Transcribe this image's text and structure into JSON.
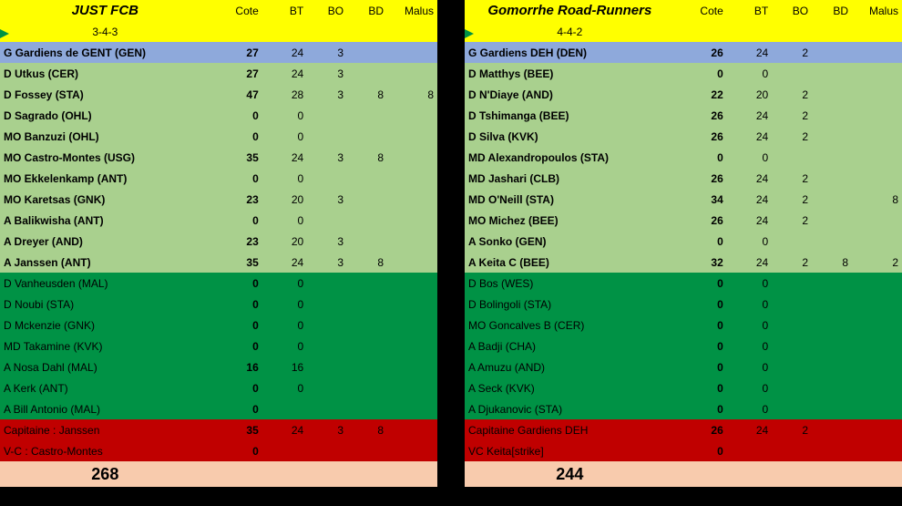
{
  "colors": {
    "header_bg": "#ffff00",
    "header_fg": "#000000",
    "gk_bg": "#8ea9db",
    "starter_bg": "#a9d08e",
    "bench_bg": "#009245",
    "captain_bg": "#c00000",
    "total_bg": "#f8cbad",
    "text_dark": "#000000",
    "text_black": "#000000"
  },
  "columns": [
    "Cote",
    "BT",
    "BO",
    "BD",
    "Malus"
  ],
  "teams": [
    {
      "name": "JUST FCB",
      "formation": "3-4-3",
      "total": 268,
      "players": [
        {
          "name": "G Gardiens de GENT (GEN)",
          "cote": 27,
          "bt": 24,
          "bo": 3,
          "bd": "",
          "malus": "",
          "tier": "gk"
        },
        {
          "name": "D Utkus (CER)",
          "cote": 27,
          "bt": 24,
          "bo": 3,
          "bd": "",
          "malus": "",
          "tier": "starter"
        },
        {
          "name": "D Fossey (STA)",
          "cote": 47,
          "bt": 28,
          "bo": 3,
          "bd": 8,
          "malus": 8,
          "tier": "starter"
        },
        {
          "name": "D Sagrado (OHL)",
          "cote": 0,
          "bt": 0,
          "bo": "",
          "bd": "",
          "malus": "",
          "tier": "starter"
        },
        {
          "name": "MO Banzuzi (OHL)",
          "cote": 0,
          "bt": 0,
          "bo": "",
          "bd": "",
          "malus": "",
          "tier": "starter"
        },
        {
          "name": "MO Castro-Montes (USG)",
          "cote": 35,
          "bt": 24,
          "bo": 3,
          "bd": 8,
          "malus": "",
          "tier": "starter"
        },
        {
          "name": "MO Ekkelenkamp (ANT)",
          "cote": 0,
          "bt": 0,
          "bo": "",
          "bd": "",
          "malus": "",
          "tier": "starter"
        },
        {
          "name": "MO Karetsas (GNK)",
          "cote": 23,
          "bt": 20,
          "bo": 3,
          "bd": "",
          "malus": "",
          "tier": "starter"
        },
        {
          "name": "A Balikwisha (ANT)",
          "cote": 0,
          "bt": 0,
          "bo": "",
          "bd": "",
          "malus": "",
          "tier": "starter"
        },
        {
          "name": "A Dreyer (AND)",
          "cote": 23,
          "bt": 20,
          "bo": 3,
          "bd": "",
          "malus": "",
          "tier": "starter"
        },
        {
          "name": "A Janssen (ANT)",
          "cote": 35,
          "bt": 24,
          "bo": 3,
          "bd": 8,
          "malus": "",
          "tier": "starter"
        },
        {
          "name": "D Vanheusden (MAL)",
          "cote": 0,
          "bt": 0,
          "bo": "",
          "bd": "",
          "malus": "",
          "tier": "bench"
        },
        {
          "name": "D Noubi (STA)",
          "cote": 0,
          "bt": 0,
          "bo": "",
          "bd": "",
          "malus": "",
          "tier": "bench"
        },
        {
          "name": "D Mckenzie (GNK)",
          "cote": 0,
          "bt": 0,
          "bo": "",
          "bd": "",
          "malus": "",
          "tier": "bench"
        },
        {
          "name": "MD Takamine (KVK)",
          "cote": 0,
          "bt": 0,
          "bo": "",
          "bd": "",
          "malus": "",
          "tier": "bench"
        },
        {
          "name": "A Nosa Dahl (MAL)",
          "cote": 16,
          "bt": 16,
          "bo": "",
          "bd": "",
          "malus": "",
          "tier": "bench"
        },
        {
          "name": "A Kerk (ANT)",
          "cote": 0,
          "bt": 0,
          "bo": "",
          "bd": "",
          "malus": "",
          "tier": "bench"
        },
        {
          "name": "A Bill Antonio (MAL)",
          "cote": 0,
          "bt": "",
          "bo": "",
          "bd": "",
          "malus": "",
          "tier": "bench"
        },
        {
          "name": "Capitaine : Janssen",
          "cote": 35,
          "bt": 24,
          "bo": 3,
          "bd": 8,
          "malus": "",
          "tier": "captain"
        },
        {
          "name": "V-C : Castro-Montes",
          "cote": 0,
          "bt": "",
          "bo": "",
          "bd": "",
          "malus": "",
          "tier": "captain"
        }
      ]
    },
    {
      "name": "Gomorrhe Road-Runners",
      "formation": "4-4-2",
      "total": 244,
      "players": [
        {
          "name": "G Gardiens DEH (DEN)",
          "cote": 26,
          "bt": 24,
          "bo": 2,
          "bd": "",
          "malus": "",
          "tier": "gk"
        },
        {
          "name": "D Matthys (BEE)",
          "cote": 0,
          "bt": 0,
          "bo": "",
          "bd": "",
          "malus": "",
          "tier": "starter"
        },
        {
          "name": "D  N'Diaye (AND)",
          "cote": 22,
          "bt": 20,
          "bo": 2,
          "bd": "",
          "malus": "",
          "tier": "starter"
        },
        {
          "name": "D Tshimanga (BEE)",
          "cote": 26,
          "bt": 24,
          "bo": 2,
          "bd": "",
          "malus": "",
          "tier": "starter"
        },
        {
          "name": "D Silva (KVK)",
          "cote": 26,
          "bt": 24,
          "bo": 2,
          "bd": "",
          "malus": "",
          "tier": "starter"
        },
        {
          "name": "MD Alexandropoulos (STA)",
          "cote": 0,
          "bt": 0,
          "bo": "",
          "bd": "",
          "malus": "",
          "tier": "starter"
        },
        {
          "name": "MD Jashari (CLB)",
          "cote": 26,
          "bt": 24,
          "bo": 2,
          "bd": "",
          "malus": "",
          "tier": "starter"
        },
        {
          "name": "MD O'Neill (STA)",
          "cote": 34,
          "bt": 24,
          "bo": 2,
          "bd": "",
          "malus": 8,
          "tier": "starter"
        },
        {
          "name": "MO Michez (BEE)",
          "cote": 26,
          "bt": 24,
          "bo": 2,
          "bd": "",
          "malus": "",
          "tier": "starter"
        },
        {
          "name": "A Sonko (GEN)",
          "cote": 0,
          "bt": 0,
          "bo": "",
          "bd": "",
          "malus": "",
          "tier": "starter"
        },
        {
          "name": "A Keita C (BEE)",
          "cote": 32,
          "bt": 24,
          "bo": 2,
          "bd": 8,
          "malus": 2,
          "tier": "starter"
        },
        {
          "name": "D Bos (WES)",
          "cote": 0,
          "bt": 0,
          "bo": "",
          "bd": "",
          "malus": "",
          "tier": "bench"
        },
        {
          "name": "D Bolingoli (STA)",
          "cote": 0,
          "bt": 0,
          "bo": "",
          "bd": "",
          "malus": "",
          "tier": "bench"
        },
        {
          "name": "MO Goncalves B (CER)",
          "cote": 0,
          "bt": 0,
          "bo": "",
          "bd": "",
          "malus": "",
          "tier": "bench"
        },
        {
          "name": "A Badji (CHA)",
          "cote": 0,
          "bt": 0,
          "bo": "",
          "bd": "",
          "malus": "",
          "tier": "bench"
        },
        {
          "name": "A Amuzu (AND)",
          "cote": 0,
          "bt": 0,
          "bo": "",
          "bd": "",
          "malus": "",
          "tier": "bench"
        },
        {
          "name": "A Seck (KVK)",
          "cote": 0,
          "bt": 0,
          "bo": "",
          "bd": "",
          "malus": "",
          "tier": "bench"
        },
        {
          "name": "A Djukanovic (STA)",
          "cote": 0,
          "bt": 0,
          "bo": "",
          "bd": "",
          "malus": "",
          "tier": "bench"
        },
        {
          "name": "Capitaine Gardiens DEH",
          "cote": 26,
          "bt": 24,
          "bo": 2,
          "bd": "",
          "malus": "",
          "tier": "captain"
        },
        {
          "name": "VC Keita[strike]",
          "cote": 0,
          "bt": "",
          "bo": "",
          "bd": "",
          "malus": "",
          "tier": "captain"
        }
      ]
    }
  ]
}
